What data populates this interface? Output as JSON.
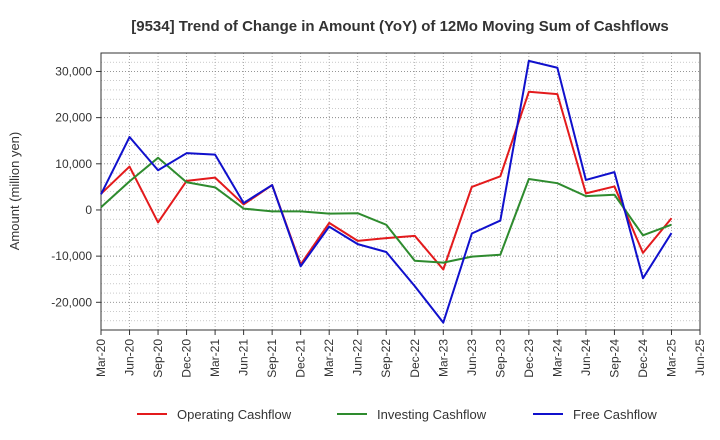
{
  "chart_data": {
    "type": "line",
    "title": "[9534]  Trend of Change in Amount (YoY) of 12Mo Moving Sum of Cashflows",
    "xlabel": "",
    "ylabel": "Amount (million yen)",
    "ylim": [
      -26000,
      34000
    ],
    "yticks": [
      -20000,
      -10000,
      0,
      10000,
      20000,
      30000
    ],
    "ytick_labels": [
      "-20,000",
      "-10,000",
      "0",
      "10,000",
      "20,000",
      "30,000"
    ],
    "grid": true,
    "legend_position": "bottom",
    "categories": [
      "Mar-20",
      "Jun-20",
      "Sep-20",
      "Dec-20",
      "Mar-21",
      "Jun-21",
      "Sep-21",
      "Dec-21",
      "Mar-22",
      "Jun-22",
      "Sep-22",
      "Dec-22",
      "Mar-23",
      "Jun-23",
      "Sep-23",
      "Dec-23",
      "Mar-24",
      "Jun-24",
      "Sep-24",
      "Dec-24",
      "Mar-25",
      "Jun-25"
    ],
    "series": [
      {
        "name": "Operating Cashflow",
        "color": "#e31a1c",
        "values": [
          3500,
          9400,
          -2700,
          6300,
          7000,
          1200,
          5400,
          -11800,
          -2800,
          -6700,
          -6100,
          -5600,
          -12900,
          5000,
          7300,
          25600,
          25100,
          3600,
          5100,
          -9300,
          -1800,
          null
        ]
      },
      {
        "name": "Investing Cashflow",
        "color": "#2e8b2e",
        "values": [
          600,
          6200,
          11300,
          6000,
          4900,
          300,
          -300,
          -300,
          -800,
          -700,
          -3200,
          -11000,
          -11400,
          -10100,
          -9700,
          6700,
          5800,
          3000,
          3300,
          -5500,
          -3200,
          null
        ]
      },
      {
        "name": "Free Cashflow",
        "color": "#1010cc",
        "values": [
          3400,
          15800,
          8600,
          12300,
          12000,
          1500,
          5400,
          -12200,
          -3600,
          -7400,
          -9100,
          -16500,
          -24400,
          -5100,
          -2300,
          32300,
          30800,
          6500,
          8200,
          -14800,
          -5000,
          null
        ]
      }
    ]
  }
}
